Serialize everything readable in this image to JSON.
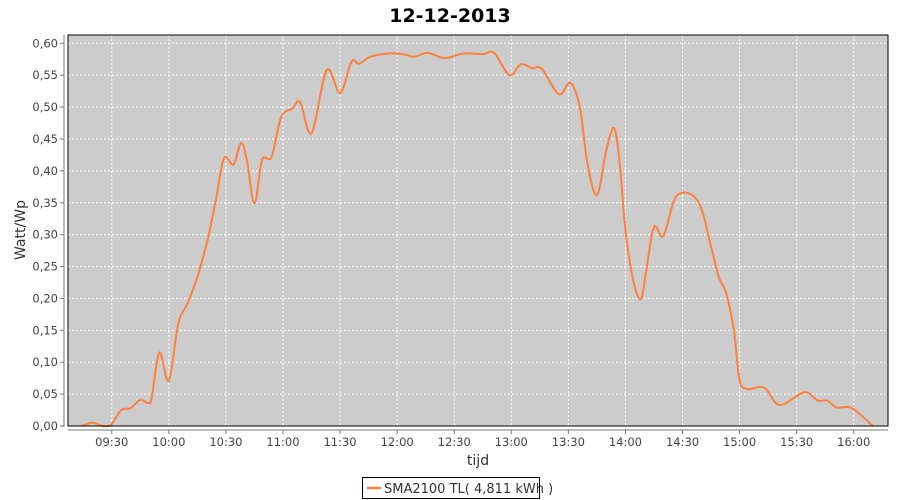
{
  "chart_data": {
    "type": "line",
    "title": "12-12-2013",
    "xlabel": "tijd",
    "ylabel": "Watt/Wp",
    "xlim": [
      "09:07",
      "16:18"
    ],
    "ylim": [
      0,
      0.613
    ],
    "grid": true,
    "legend_placement": "bottom",
    "background_color": "#cccccc",
    "x_ticks": [
      "09:30",
      "10:00",
      "10:30",
      "11:00",
      "11:30",
      "12:00",
      "12:30",
      "13:00",
      "13:30",
      "14:00",
      "14:30",
      "15:00",
      "15:30",
      "16:00"
    ],
    "y_ticks": [
      0,
      0.05,
      0.1,
      0.15,
      0.2,
      0.25,
      0.3,
      0.35,
      0.4,
      0.45,
      0.5,
      0.55,
      0.6
    ],
    "y_tick_labels": [
      "0,00",
      "0,05",
      "0,10",
      "0,15",
      "0,20",
      "0,25",
      "0,30",
      "0,35",
      "0,40",
      "0,45",
      "0,50",
      "0,55",
      "0,60"
    ],
    "series": [
      {
        "name": "SMA2100 TL( 4,811 kWh )",
        "color": "#ff7f3f",
        "x": [
          "09:14",
          "09:20",
          "09:25",
          "09:28",
          "09:30",
          "09:35",
          "09:40",
          "09:45",
          "09:49",
          "09:51",
          "09:55",
          "10:00",
          "10:05",
          "10:10",
          "10:15",
          "10:18",
          "10:21",
          "10:25",
          "10:29",
          "10:34",
          "10:38",
          "10:41",
          "10:45",
          "10:49",
          "10:54",
          "10:59",
          "11:05",
          "11:09",
          "11:15",
          "11:23",
          "11:30",
          "11:36",
          "11:40",
          "11:46",
          "11:55",
          "12:03",
          "12:09",
          "12:16",
          "12:25",
          "12:35",
          "12:45",
          "12:51",
          "12:59",
          "13:05",
          "13:11",
          "13:16",
          "13:25",
          "13:31",
          "13:36",
          "13:40",
          "13:45",
          "13:50",
          "13:54",
          "13:57",
          "14:00",
          "14:04",
          "14:08",
          "14:11",
          "14:15",
          "14:20",
          "14:27",
          "14:38",
          "14:45",
          "14:49",
          "14:53",
          "14:57",
          "15:00",
          "15:04",
          "15:13",
          "15:21",
          "15:34",
          "15:41",
          "15:46",
          "15:51",
          "15:59",
          "16:10"
        ],
        "values": [
          0,
          0.005,
          0,
          0,
          0.003,
          0.025,
          0.028,
          0.041,
          0.036,
          0.044,
          0.115,
          0.071,
          0.161,
          0.193,
          0.234,
          0.265,
          0.3,
          0.359,
          0.42,
          0.41,
          0.444,
          0.417,
          0.349,
          0.417,
          0.422,
          0.484,
          0.498,
          0.508,
          0.459,
          0.558,
          0.522,
          0.571,
          0.568,
          0.579,
          0.584,
          0.583,
          0.579,
          0.585,
          0.577,
          0.584,
          0.583,
          0.585,
          0.55,
          0.567,
          0.561,
          0.56,
          0.52,
          0.538,
          0.5,
          0.412,
          0.362,
          0.433,
          0.467,
          0.412,
          0.307,
          0.229,
          0.199,
          0.245,
          0.312,
          0.298,
          0.361,
          0.353,
          0.281,
          0.234,
          0.208,
          0.15,
          0.072,
          0.058,
          0.06,
          0.033,
          0.053,
          0.04,
          0.04,
          0.029,
          0.028,
          0
        ]
      }
    ]
  }
}
